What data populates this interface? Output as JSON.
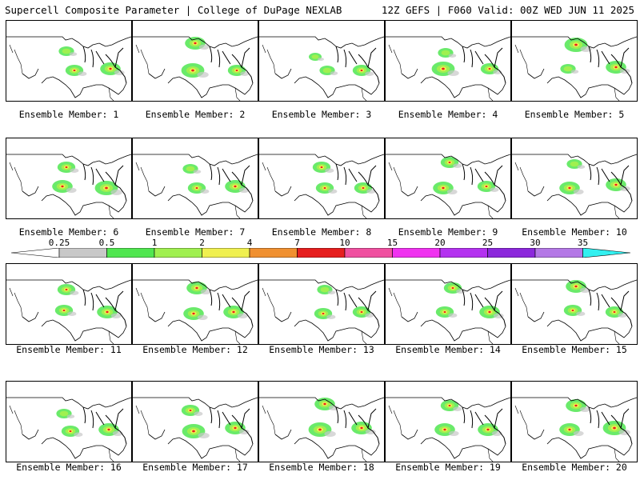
{
  "header": {
    "left": "Supercell Composite Parameter | College of DuPage NEXLAB",
    "right": "12Z GEFS | F060 Valid: 00Z WED JUN 11 2025"
  },
  "members": [
    "Ensemble Member: 1",
    "Ensemble Member: 2",
    "Ensemble Member: 3",
    "Ensemble Member: 4",
    "Ensemble Member: 5",
    "Ensemble Member: 6",
    "Ensemble Member: 7",
    "Ensemble Member: 8",
    "Ensemble Member: 9",
    "Ensemble Member: 10",
    "Ensemble Member: 11",
    "Ensemble Member: 12",
    "Ensemble Member: 13",
    "Ensemble Member: 14",
    "Ensemble Member: 15",
    "Ensemble Member: 16",
    "Ensemble Member: 17",
    "Ensemble Member: 18",
    "Ensemble Member: 19",
    "Ensemble Member: 20"
  ],
  "colorbar": {
    "labels": [
      "0.25",
      "0.5",
      "1",
      "2",
      "4",
      "7",
      "10",
      "15",
      "20",
      "25",
      "30",
      "35"
    ],
    "colors": [
      "#c8c8c8",
      "#50e650",
      "#a0f050",
      "#f0f050",
      "#f09030",
      "#e61e1e",
      "#f050a0",
      "#f032f0",
      "#b432f0",
      "#8c28dc",
      "#b478e6",
      "#32f0f0"
    ]
  }
}
